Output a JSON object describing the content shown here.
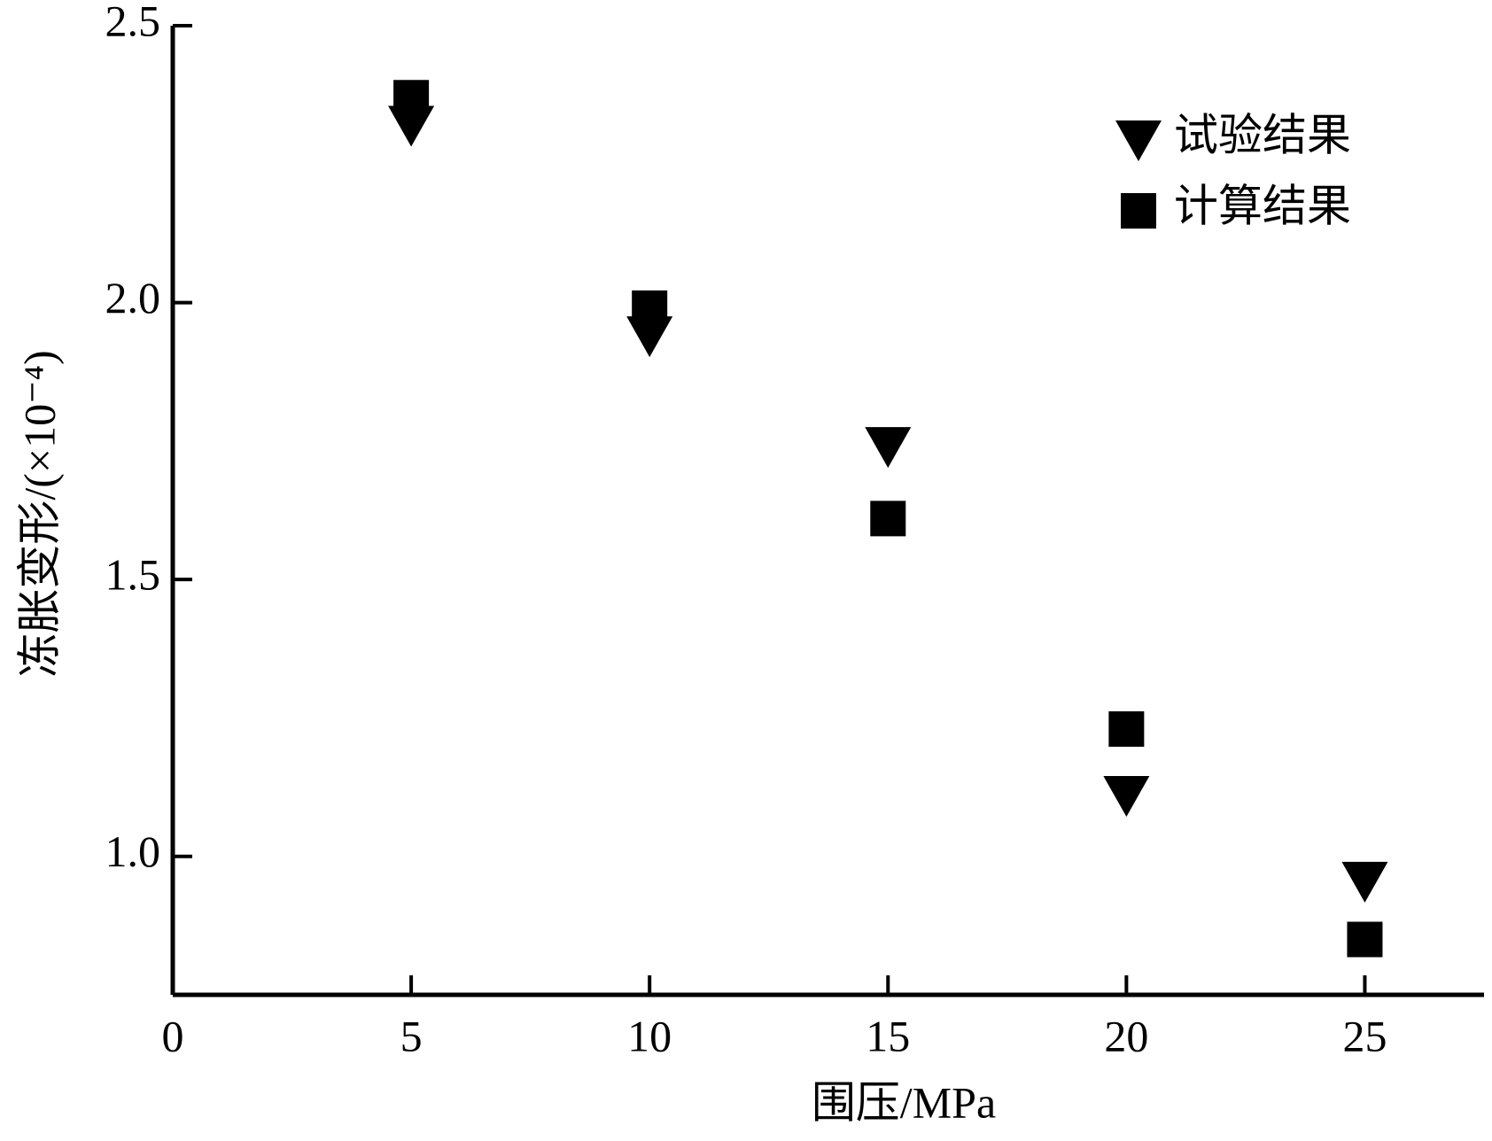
{
  "chart_data": {
    "type": "scatter",
    "xlabel": "围压/MPa",
    "ylabel": "冻胀变形/(×10⁻⁴)",
    "xlim": [
      0,
      27.5
    ],
    "ylim": [
      0.75,
      2.5
    ],
    "xticks": [
      0,
      5,
      10,
      15,
      20,
      25
    ],
    "yticks": [
      {
        "value": 1,
        "label": "1.0"
      },
      1.5,
      {
        "value": 2,
        "label": "2.0"
      },
      2.5
    ],
    "legend": "upper right",
    "series": [
      {
        "name": "试验结果",
        "marker": "triangle",
        "color": "#000000",
        "x": [
          5,
          10,
          15,
          20,
          25
        ],
        "values": [
          2.32,
          1.94,
          1.74,
          1.11,
          0.955
        ]
      },
      {
        "name": "计算结果",
        "marker": "square",
        "color": "#000000",
        "x": [
          5,
          10,
          15,
          20,
          25
        ],
        "values": [
          2.37,
          1.99,
          1.61,
          1.23,
          0.85
        ]
      }
    ]
  }
}
